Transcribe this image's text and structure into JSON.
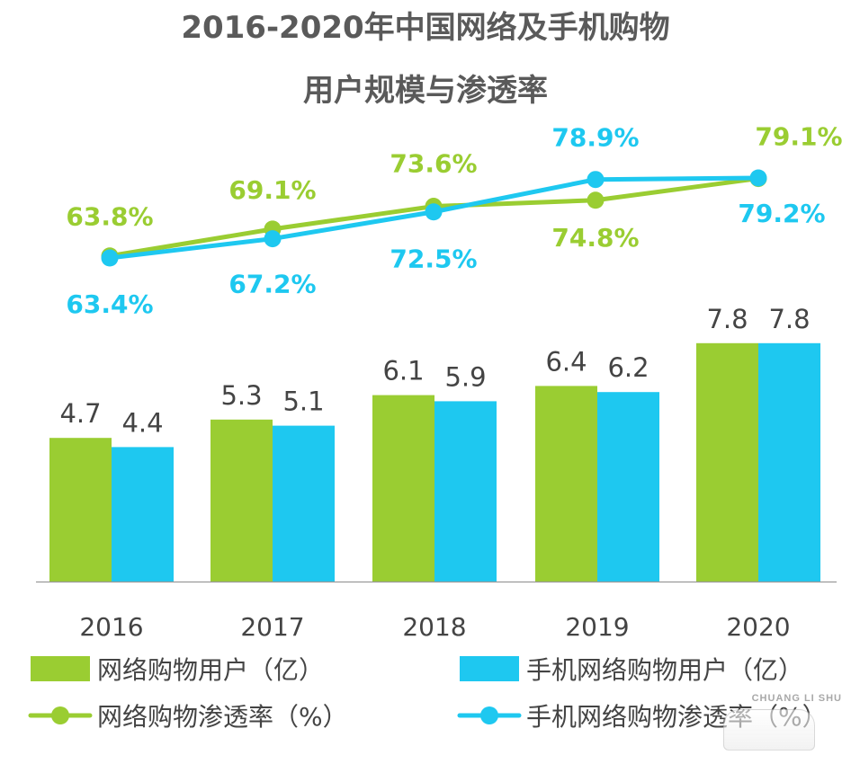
{
  "chart_data": {
    "type": "bar+line",
    "title_line1": "2016-2020年中国网络及手机购物",
    "title_line2": "用户规模与渗透率",
    "categories": [
      "2016",
      "2017",
      "2018",
      "2019",
      "2020"
    ],
    "bar_series": [
      {
        "name": "网络购物用户（亿）",
        "color": "#9acd32",
        "values": [
          4.7,
          5.3,
          6.1,
          6.4,
          7.8
        ],
        "labels": [
          "4.7",
          "5.3",
          "6.1",
          "6.4",
          "7.8"
        ]
      },
      {
        "name": "手机网络购物用户（亿）",
        "color": "#1ec8f0",
        "values": [
          4.4,
          5.1,
          5.9,
          6.2,
          7.8
        ],
        "labels": [
          "4.4",
          "5.1",
          "5.9",
          "6.2",
          "7.8"
        ]
      }
    ],
    "line_series": [
      {
        "name": "网络购物渗透率（%）",
        "color": "#9acd32",
        "values": [
          63.8,
          69.1,
          73.6,
          74.8,
          79.1
        ],
        "labels": [
          "63.8%",
          "69.1%",
          "73.6%",
          "74.8%",
          "79.1%"
        ]
      },
      {
        "name": "手机网络购物渗透率（%）",
        "color": "#1ec8f0",
        "values": [
          63.4,
          67.2,
          72.5,
          78.9,
          79.2
        ],
        "labels": [
          "63.4%",
          "67.2%",
          "72.5%",
          "78.9%",
          "79.2%"
        ]
      }
    ],
    "legend": {
      "items": [
        "网络购物用户（亿）",
        "手机网络购物用户（亿）",
        "网络购物渗透率（%）",
        "手机网络购物渗透率（%）"
      ],
      "placement": "bottom"
    },
    "watermark_text": "CHUANG LI SHU"
  },
  "colors": {
    "title": "#5a5a5a",
    "text": "#444444",
    "axis": "#9a9a9a",
    "green": "#9acd32",
    "blue": "#1ec8f0"
  }
}
